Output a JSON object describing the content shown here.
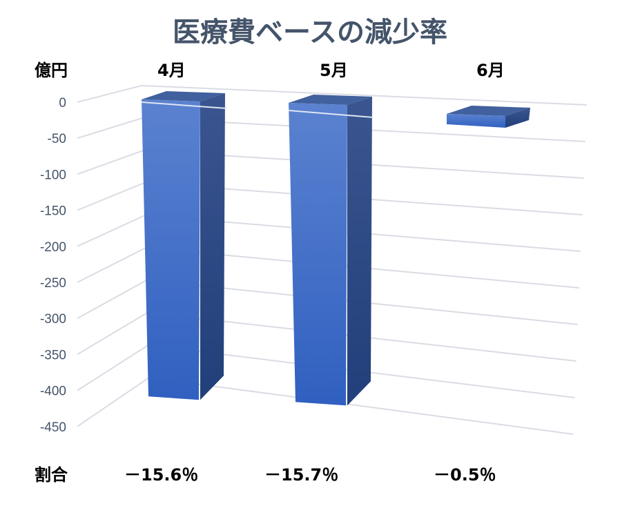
{
  "chart_data": {
    "type": "bar",
    "title": "医療費ベースの減少率",
    "ylabel": "億円",
    "categories": [
      "4月",
      "5月",
      "6月"
    ],
    "values": [
      -410,
      -413,
      -14
    ],
    "ylim": [
      -450,
      0
    ],
    "yticks": [
      "0",
      "-50",
      "-100",
      "-150",
      "-200",
      "-250",
      "-300",
      "-350",
      "-400",
      "-450"
    ],
    "grid": true,
    "style": "3d-column",
    "bar_color": "#4472c4",
    "ratio_label": "割合",
    "ratios": [
      "－15.6％",
      "－15.7％",
      "－0.5％"
    ]
  }
}
